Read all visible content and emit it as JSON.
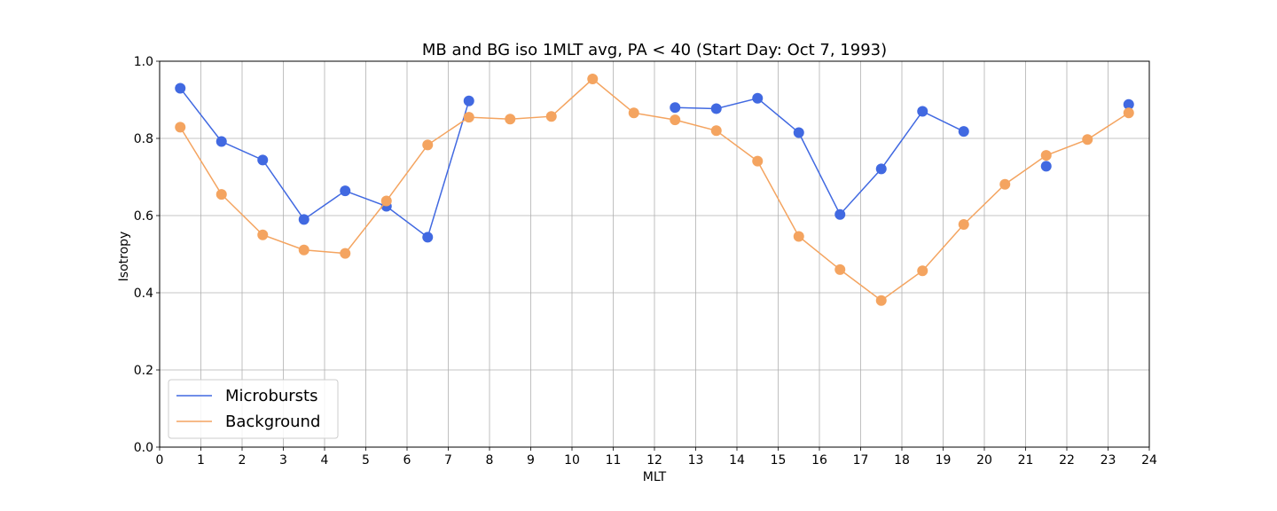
{
  "chart_data": {
    "type": "line",
    "title": "MB and BG iso 1MLT avg, PA < 40 (Start Day: Oct 7, 1993)",
    "xlabel": "MLT",
    "ylabel": "Isotropy",
    "xlim": [
      0,
      24
    ],
    "ylim": [
      0,
      1.0
    ],
    "xticks": [
      0,
      1,
      2,
      3,
      4,
      5,
      6,
      7,
      8,
      9,
      10,
      11,
      12,
      13,
      14,
      15,
      16,
      17,
      18,
      19,
      20,
      21,
      22,
      23,
      24
    ],
    "yticks": [
      0.0,
      0.2,
      0.4,
      0.6,
      0.8,
      1.0
    ],
    "ytick_labels": [
      "0.0",
      "0.2",
      "0.4",
      "0.6",
      "0.8",
      "1.0"
    ],
    "grid": true,
    "legend_position": "lower-left",
    "series": [
      {
        "name": "Microbursts",
        "color": "#4169e1",
        "x": [
          0.5,
          1.5,
          2.5,
          3.5,
          4.5,
          5.5,
          6.5,
          7.5,
          8.5,
          9.5,
          10.5,
          11.5,
          12.5,
          13.5,
          14.5,
          15.5,
          16.5,
          17.5,
          18.5,
          19.5,
          20.5,
          21.5,
          22.5,
          23.5
        ],
        "y": [
          0.93,
          0.792,
          0.744,
          0.59,
          0.664,
          0.624,
          0.544,
          0.897,
          null,
          null,
          null,
          null,
          0.88,
          0.877,
          0.904,
          0.815,
          0.603,
          0.721,
          0.87,
          0.818,
          null,
          0.728,
          null,
          0.888
        ]
      },
      {
        "name": "Background",
        "color": "#f4a460",
        "x": [
          0.5,
          1.5,
          2.5,
          3.5,
          4.5,
          5.5,
          6.5,
          7.5,
          8.5,
          9.5,
          10.5,
          11.5,
          12.5,
          13.5,
          14.5,
          15.5,
          16.5,
          17.5,
          18.5,
          19.5,
          20.5,
          21.5,
          22.5,
          23.5
        ],
        "y": [
          0.829,
          0.655,
          0.55,
          0.511,
          0.502,
          0.638,
          0.783,
          0.855,
          0.85,
          0.857,
          0.954,
          0.866,
          0.848,
          0.82,
          0.741,
          0.546,
          0.46,
          0.38,
          0.457,
          0.577,
          0.681,
          0.756,
          0.797,
          0.866
        ]
      }
    ]
  }
}
